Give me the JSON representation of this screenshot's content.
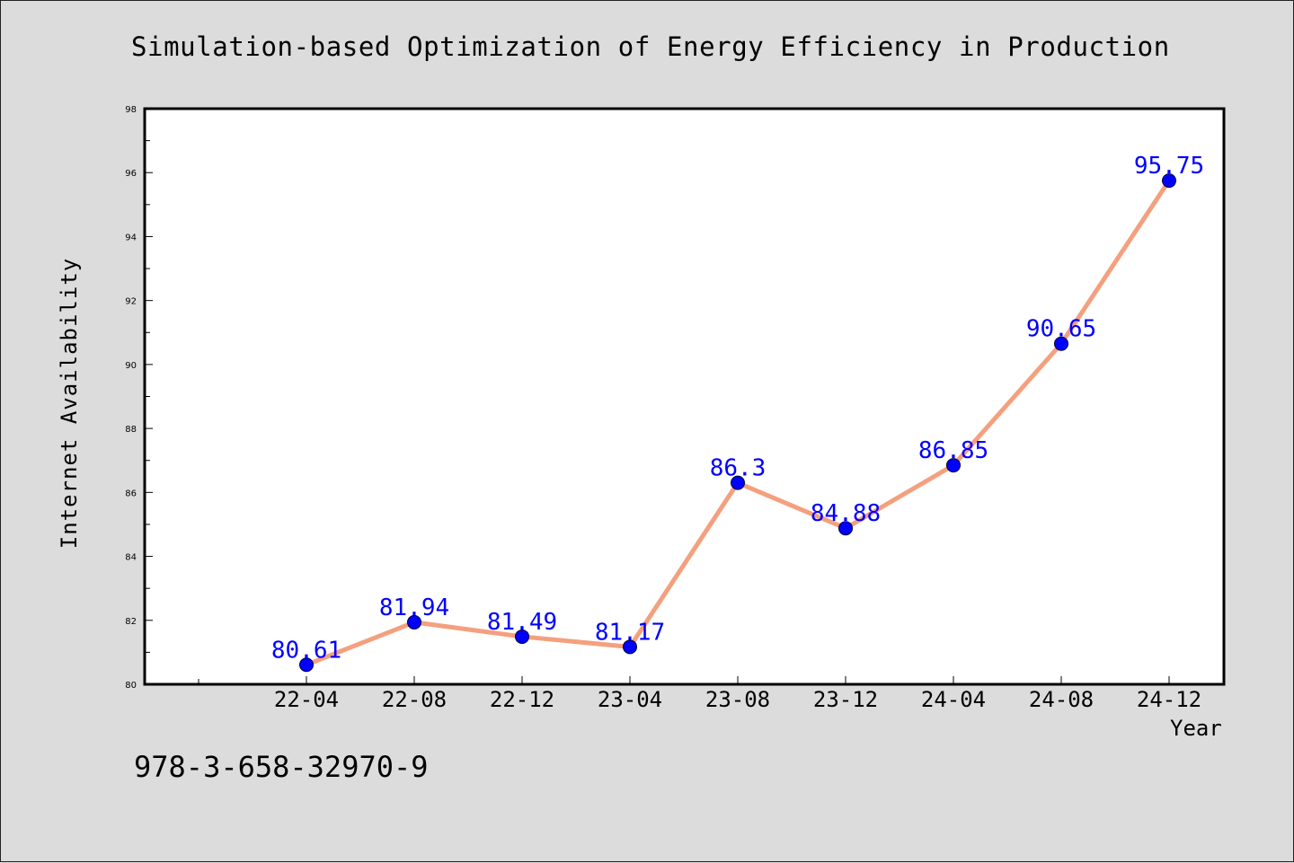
{
  "chart_data": {
    "type": "line",
    "title": "Simulation-based Optimization of Energy Efficiency in Production",
    "xlabel": "Year",
    "ylabel": "Internet Availability",
    "categories": [
      "22-04",
      "22-08",
      "22-12",
      "23-04",
      "23-08",
      "23-12",
      "24-04",
      "24-08",
      "24-12"
    ],
    "series": [
      {
        "values": [
          80.61,
          81.94,
          81.49,
          81.17,
          86.3,
          84.88,
          86.85,
          90.65,
          95.75
        ],
        "data_labels": [
          "80.61",
          "81.94",
          "81.49",
          "81.17",
          "86.3",
          "84.88",
          "86.85",
          "90.65",
          "95.75"
        ]
      }
    ],
    "ylim": [
      80,
      98
    ],
    "yticks": [
      80,
      82,
      84,
      86,
      88,
      90,
      92,
      94,
      96,
      98
    ],
    "grid": false,
    "line_color": "#f4a07e",
    "marker_color": "#0000ff",
    "label_color": "#0000ff"
  },
  "footer": {
    "code": "978-3-658-32970-9"
  }
}
